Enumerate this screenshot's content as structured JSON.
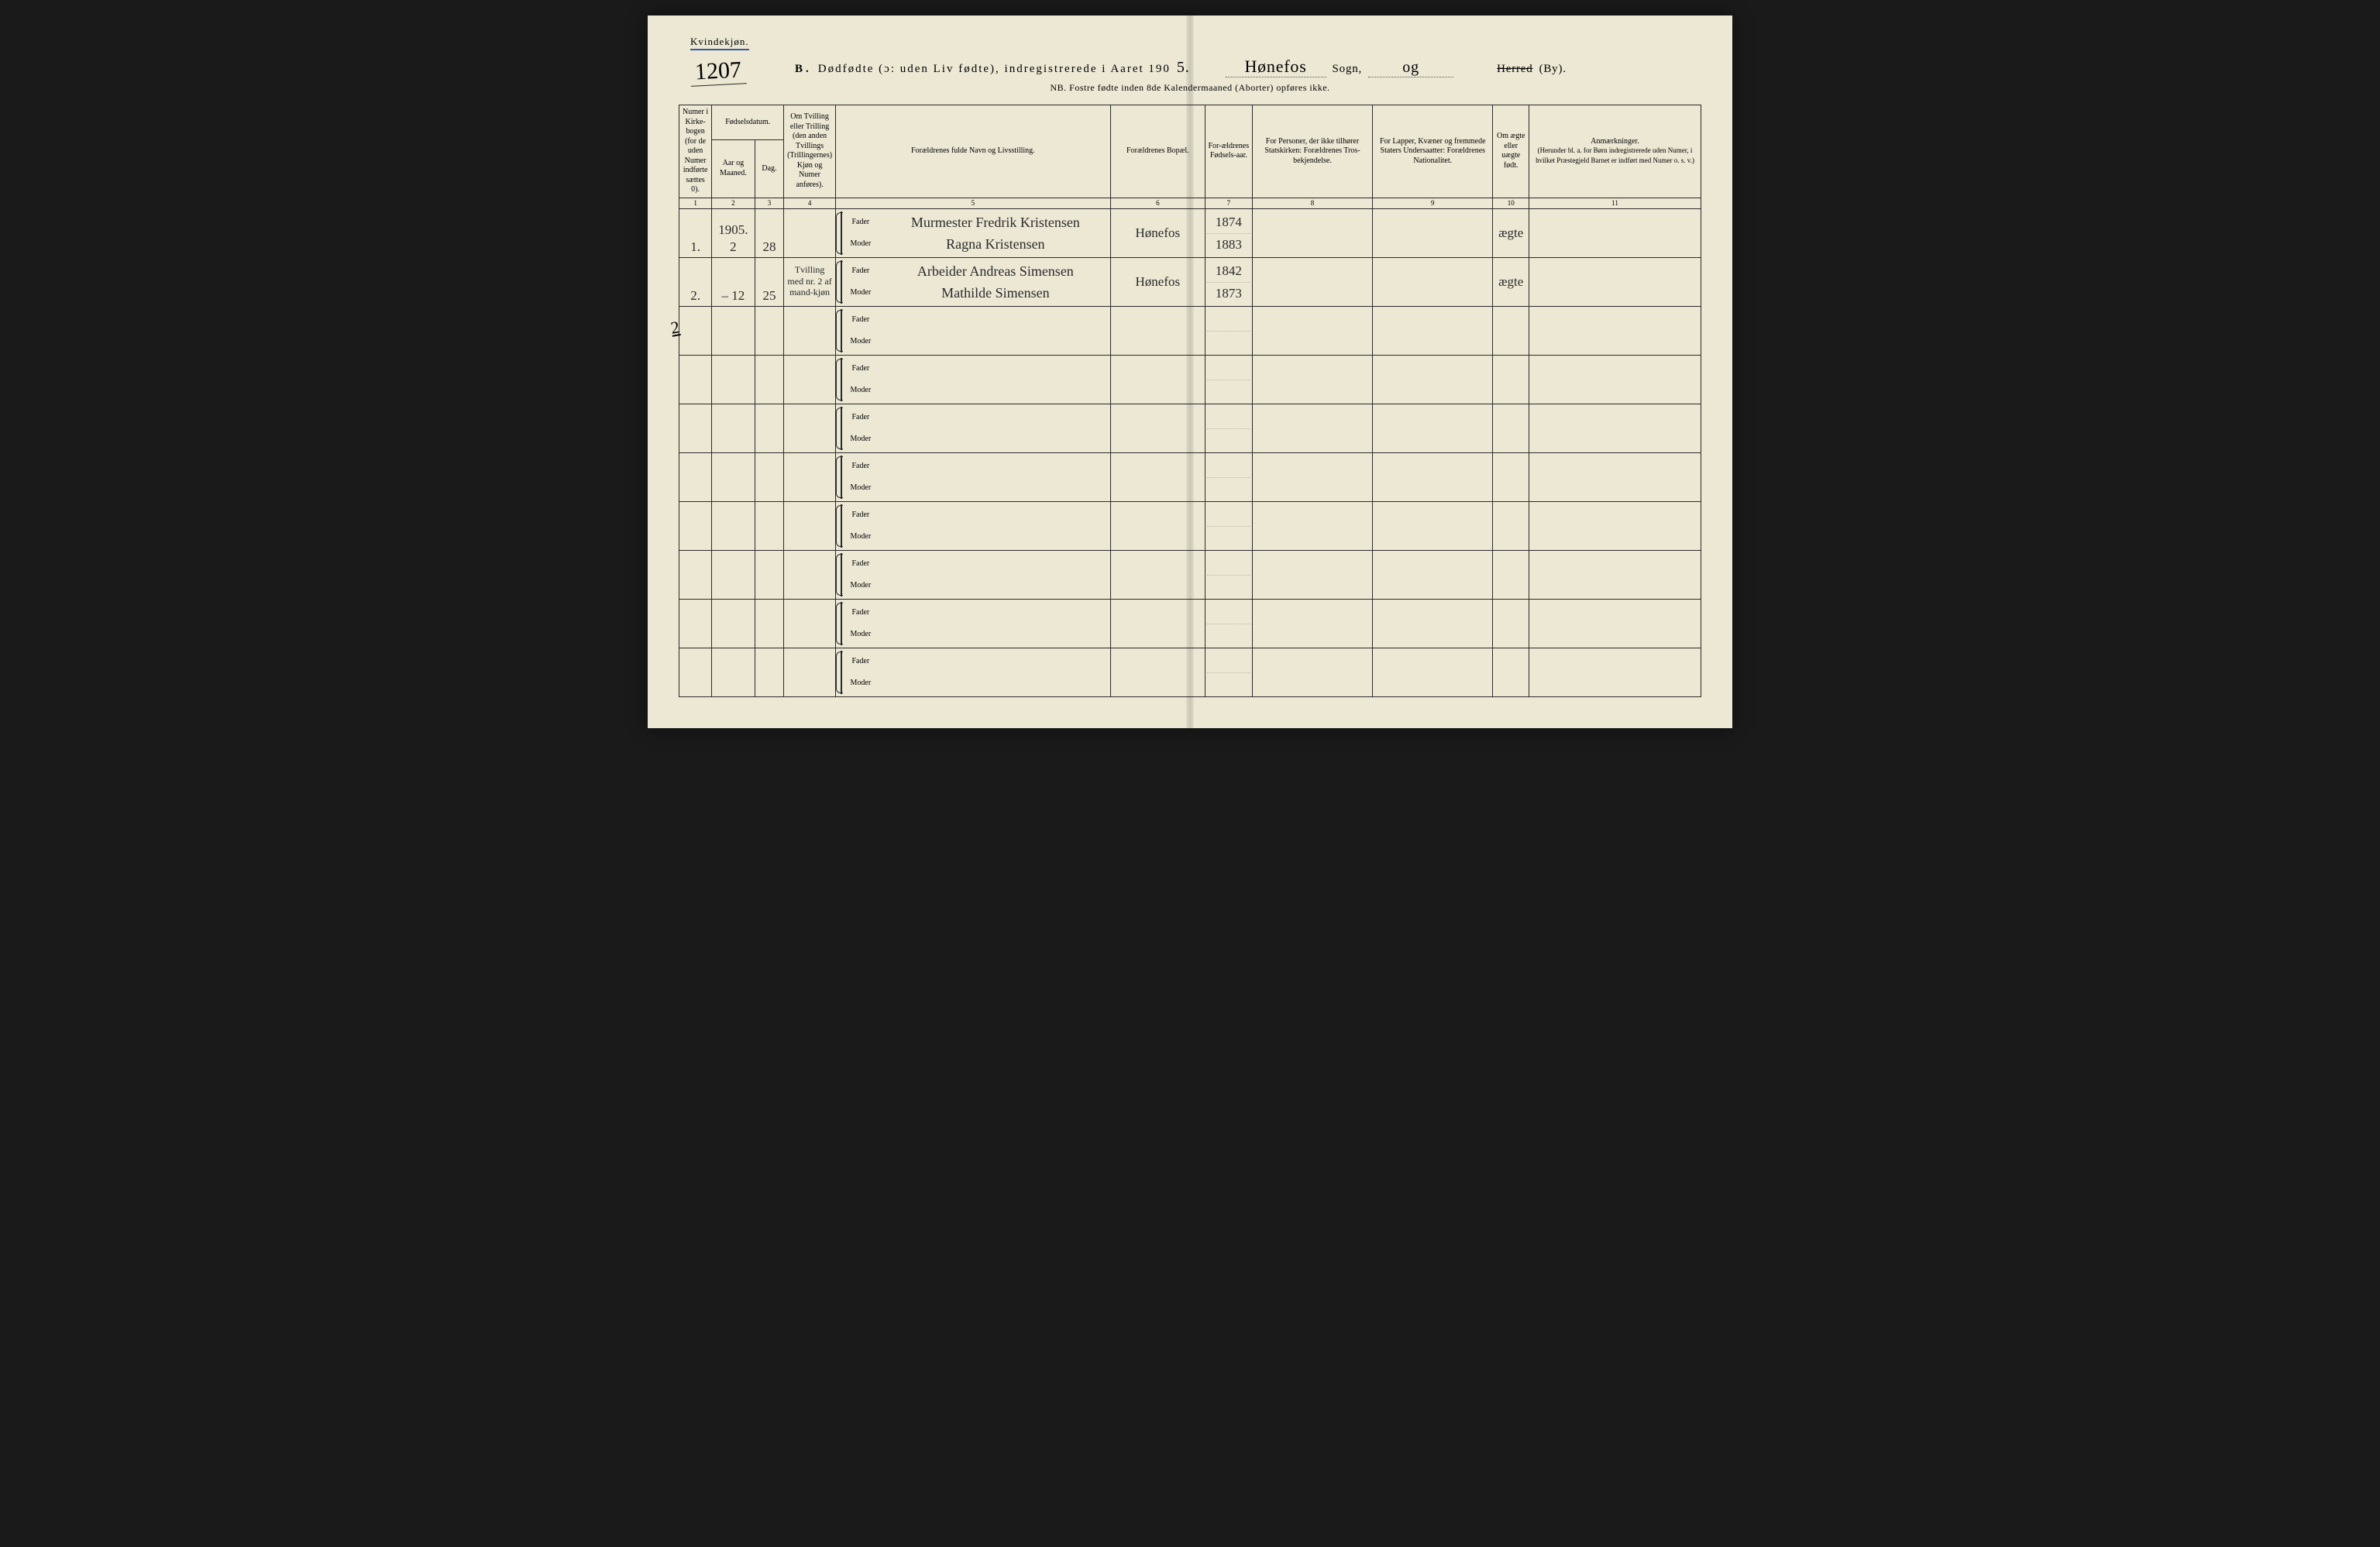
{
  "colors": {
    "paper": "#ece8d4",
    "ink": "#2a2a2a",
    "underline_blue": "#3a5a9a",
    "background": "#1a1a1a"
  },
  "top_label": "Kvindekjøn.",
  "page_number_hw": "1207",
  "side_margin_hw": "2",
  "header": {
    "prefix_b": "B.",
    "title_main": "Dødfødte (ɔ: uden Liv fødte), indregistrerede i Aaret 190",
    "year_suffix_hw": "5.",
    "sogn_fill_hw": "Hønefos",
    "sogn_label": "Sogn,",
    "og_fill_hw": "og",
    "herred_strike": "Herred",
    "by_suffix": "(By)."
  },
  "nb_line": "NB.  Fostre fødte inden 8de Kalendermaaned (Aborter) opføres ikke.",
  "columns": {
    "c1": "Numer i Kirke-bogen (for de uden Numer indførte sættes 0).",
    "c2a": "Fødselsdatum.",
    "c2_aar": "Aar og Maaned.",
    "c2_dag": "Dag.",
    "c4": "Om Tvilling eller Trilling (den anden Tvillings (Trillingernes) Kjøn og Numer anføres).",
    "c5": "Forældrenes fulde Navn og Livsstilling.",
    "c6": "Forældrenes Bopæl.",
    "c7": "For-ældrenes Fødsels-aar.",
    "c8": "For Personer, der ikke tilhører Statskirken: Forældrenes Tros-bekjendelse.",
    "c9": "For Lapper, Kvæner og fremmede Staters Undersaatter: Forældrenes Nationalitet.",
    "c10": "Om ægte eller uægte født.",
    "c11": "Anmærkninger.",
    "c11_sub": "(Herunder bl. a. for Børn indregistrerede uden Numer, i hvilket Præstegjeld Barnet er indført med Numer o. s. v.)"
  },
  "colnums": [
    "1",
    "2",
    "3",
    "4",
    "5",
    "6",
    "7",
    "8",
    "9",
    "10",
    "11"
  ],
  "parent_labels": {
    "fader": "Fader",
    "moder": "Moder"
  },
  "rows": [
    {
      "num": "1.",
      "aar_maaned": "1905. 2",
      "dag": "28",
      "tvilling": "",
      "fader": "Murmester Fredrik Kristensen",
      "moder": "Ragna Kristensen",
      "bopael": "Hønefos",
      "fader_aar": "1874",
      "moder_aar": "1883",
      "tros": "",
      "nat": "",
      "aegte": "ægte",
      "anm": ""
    },
    {
      "num": "2.",
      "aar_maaned": "–  12",
      "dag": "25",
      "tvilling": "Tvilling med nr. 2 af mand-kjøn",
      "fader": "Arbeider Andreas Simensen",
      "moder": "Mathilde Simensen",
      "bopael": "Hønefos",
      "fader_aar": "1842",
      "moder_aar": "1873",
      "tros": "",
      "nat": "",
      "aegte": "ægte",
      "anm": ""
    },
    {
      "num": "",
      "aar_maaned": "",
      "dag": "",
      "tvilling": "",
      "fader": "",
      "moder": "",
      "bopael": "",
      "fader_aar": "",
      "moder_aar": "",
      "tros": "",
      "nat": "",
      "aegte": "",
      "anm": ""
    },
    {
      "num": "",
      "aar_maaned": "",
      "dag": "",
      "tvilling": "",
      "fader": "",
      "moder": "",
      "bopael": "",
      "fader_aar": "",
      "moder_aar": "",
      "tros": "",
      "nat": "",
      "aegte": "",
      "anm": ""
    },
    {
      "num": "",
      "aar_maaned": "",
      "dag": "",
      "tvilling": "",
      "fader": "",
      "moder": "",
      "bopael": "",
      "fader_aar": "",
      "moder_aar": "",
      "tros": "",
      "nat": "",
      "aegte": "",
      "anm": ""
    },
    {
      "num": "",
      "aar_maaned": "",
      "dag": "",
      "tvilling": "",
      "fader": "",
      "moder": "",
      "bopael": "",
      "fader_aar": "",
      "moder_aar": "",
      "tros": "",
      "nat": "",
      "aegte": "",
      "anm": ""
    },
    {
      "num": "",
      "aar_maaned": "",
      "dag": "",
      "tvilling": "",
      "fader": "",
      "moder": "",
      "bopael": "",
      "fader_aar": "",
      "moder_aar": "",
      "tros": "",
      "nat": "",
      "aegte": "",
      "anm": ""
    },
    {
      "num": "",
      "aar_maaned": "",
      "dag": "",
      "tvilling": "",
      "fader": "",
      "moder": "",
      "bopael": "",
      "fader_aar": "",
      "moder_aar": "",
      "tros": "",
      "nat": "",
      "aegte": "",
      "anm": ""
    },
    {
      "num": "",
      "aar_maaned": "",
      "dag": "",
      "tvilling": "",
      "fader": "",
      "moder": "",
      "bopael": "",
      "fader_aar": "",
      "moder_aar": "",
      "tros": "",
      "nat": "",
      "aegte": "",
      "anm": ""
    },
    {
      "num": "",
      "aar_maaned": "",
      "dag": "",
      "tvilling": "",
      "fader": "",
      "moder": "",
      "bopael": "",
      "fader_aar": "",
      "moder_aar": "",
      "tros": "",
      "nat": "",
      "aegte": "",
      "anm": ""
    }
  ]
}
